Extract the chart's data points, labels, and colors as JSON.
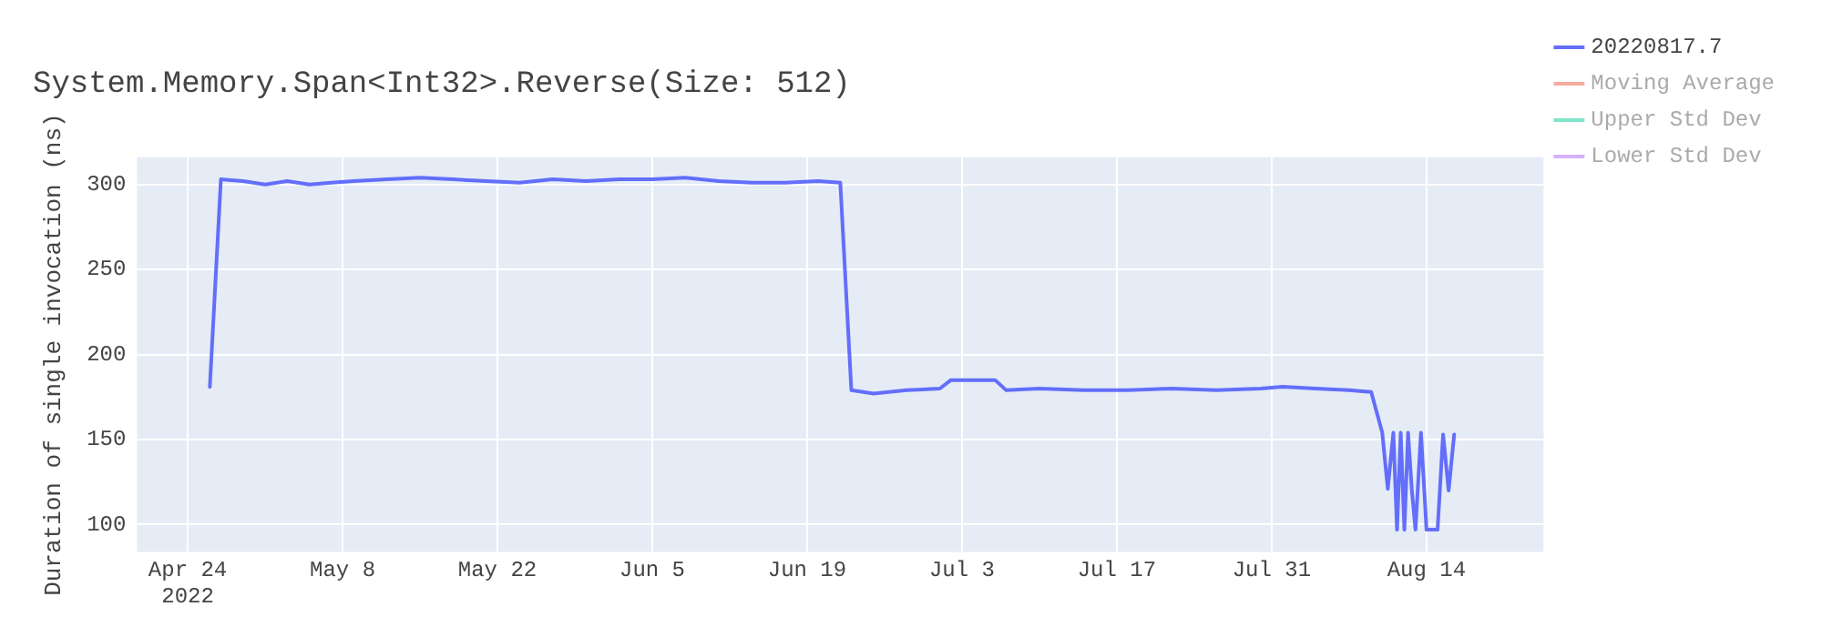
{
  "chart_data": {
    "type": "line",
    "title": "System.Memory.Span<Int32>.Reverse(Size: 512)",
    "ylabel": "Duration of single invocation (ns)",
    "xlim": [
      "2022-04-19T10:00",
      "2022-08-24T14:00"
    ],
    "xticks": [
      {
        "value": "2022-04-24",
        "label": "Apr 24\n2022"
      },
      {
        "value": "2022-05-08",
        "label": "May 8"
      },
      {
        "value": "2022-05-22",
        "label": "May 22"
      },
      {
        "value": "2022-06-05",
        "label": "Jun 5"
      },
      {
        "value": "2022-06-19",
        "label": "Jun 19"
      },
      {
        "value": "2022-07-03",
        "label": "Jul 3"
      },
      {
        "value": "2022-07-17",
        "label": "Jul 17"
      },
      {
        "value": "2022-07-31",
        "label": "Jul 31"
      },
      {
        "value": "2022-08-14",
        "label": "Aug 14"
      }
    ],
    "ylim": [
      84,
      316
    ],
    "yticks": [
      100,
      150,
      200,
      250,
      300
    ],
    "grid": true,
    "legend": "top right",
    "marker": "none",
    "line_style": "solid",
    "series": [
      {
        "name": "20220817.7",
        "color": "#636efa",
        "x": [
          "2022-04-26",
          "2022-04-27",
          "2022-04-29",
          "2022-05-01",
          "2022-05-03",
          "2022-05-05",
          "2022-05-07",
          "2022-05-09",
          "2022-05-12",
          "2022-05-15",
          "2022-05-18",
          "2022-05-21",
          "2022-05-24",
          "2022-05-27",
          "2022-05-30",
          "2022-06-02",
          "2022-06-05",
          "2022-06-08",
          "2022-06-11",
          "2022-06-14",
          "2022-06-17",
          "2022-06-20",
          "2022-06-22",
          "2022-06-23",
          "2022-06-25",
          "2022-06-28",
          "2022-07-01",
          "2022-07-02",
          "2022-07-06",
          "2022-07-07",
          "2022-07-10",
          "2022-07-14",
          "2022-07-18",
          "2022-07-22",
          "2022-07-26",
          "2022-07-30",
          "2022-08-01",
          "2022-08-04",
          "2022-08-07",
          "2022-08-09",
          "2022-08-10",
          "2022-08-10T12:00",
          "2022-08-11",
          "2022-08-11T08:00",
          "2022-08-11T16:00",
          "2022-08-12",
          "2022-08-12T08:00",
          "2022-08-12T16:00",
          "2022-08-13",
          "2022-08-13T12:00",
          "2022-08-14",
          "2022-08-15",
          "2022-08-15T12:00",
          "2022-08-16",
          "2022-08-16T12:00"
        ],
        "values": [
          181,
          303,
          302,
          300,
          302,
          300,
          301,
          302,
          303,
          304,
          303,
          302,
          301,
          303,
          302,
          303,
          303,
          304,
          302,
          301,
          301,
          302,
          301,
          179,
          177,
          179,
          180,
          185,
          185,
          179,
          180,
          179,
          179,
          180,
          179,
          180,
          181,
          180,
          179,
          178,
          154,
          121,
          154,
          97,
          154,
          97,
          154,
          121,
          97,
          154,
          97,
          97,
          153,
          120,
          153
        ]
      },
      {
        "name": "Moving Average",
        "color": "#f7aa9d"
      },
      {
        "name": "Upper Std Dev",
        "color": "#80e5ca"
      },
      {
        "name": "Lower Std Dev",
        "color": "#d5b1fc"
      }
    ]
  }
}
